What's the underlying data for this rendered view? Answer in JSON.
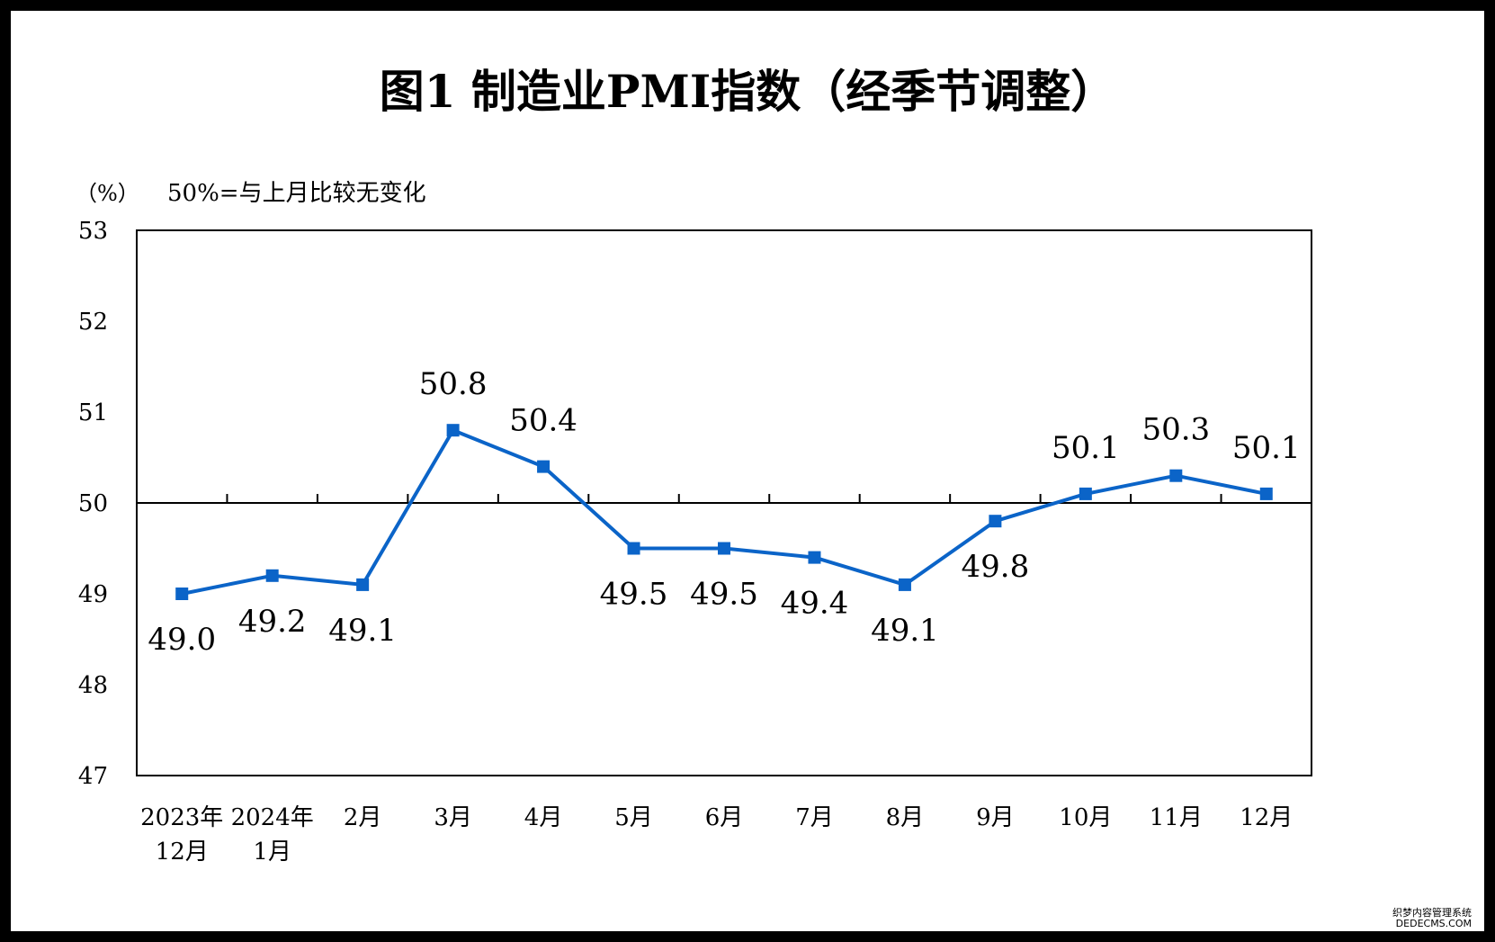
{
  "chart_data": {
    "type": "line",
    "title": "图1  制造业PMI指数（经季节调整）",
    "unit_label": "（%）",
    "reference_note": "50%=与上月比较无变化",
    "ylim": [
      47,
      53
    ],
    "yticks": [
      47,
      48,
      49,
      50,
      51,
      52,
      53
    ],
    "reference_line": 50,
    "grid": false,
    "categories": [
      [
        "2023年",
        "12月"
      ],
      [
        "2024年",
        "1月"
      ],
      [
        "2月"
      ],
      [
        "3月"
      ],
      [
        "4月"
      ],
      [
        "5月"
      ],
      [
        "6月"
      ],
      [
        "7月"
      ],
      [
        "8月"
      ],
      [
        "9月"
      ],
      [
        "10月"
      ],
      [
        "11月"
      ],
      [
        "12月"
      ]
    ],
    "series": [
      {
        "values": [
          49.0,
          49.2,
          49.1,
          50.8,
          50.4,
          49.5,
          49.5,
          49.4,
          49.1,
          49.8,
          50.1,
          50.3,
          50.1
        ],
        "labels": [
          "49.0",
          "49.2",
          "49.1",
          "50.8",
          "50.4",
          "49.5",
          "49.5",
          "49.4",
          "49.1",
          "49.8",
          "50.1",
          "50.3",
          "50.1"
        ],
        "label_position": [
          "below",
          "below",
          "below",
          "above",
          "above",
          "below",
          "below",
          "below",
          "below",
          "below",
          "above",
          "above",
          "above"
        ],
        "color": "#0b64c8"
      }
    ]
  },
  "watermark": {
    "line1": "织梦内容管理系统",
    "line2": "DEDECMS.COM"
  },
  "colors": {
    "line": "#0b64c8",
    "axis": "#000000",
    "background": "#ffffff",
    "border": "#000000"
  }
}
